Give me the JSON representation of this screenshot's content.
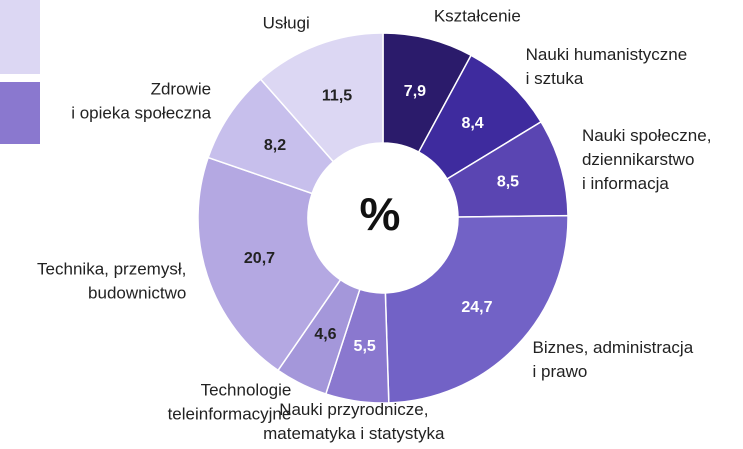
{
  "chart_data": {
    "type": "donut",
    "center_label": "%",
    "categories": [
      "Kształcenie",
      "Nauki humanistyczne\ni sztuka",
      "Nauki społeczne,\ndziennikarstwo\ni informacja",
      "Biznes, administracja\ni prawo",
      "Nauki przyrodnicze,\nmatematyka i statystyka",
      "Technologie\nteleinformacyjne",
      "Technika, przemysł,\nbudownictwo",
      "Zdrowie\ni opieka społeczna",
      "Usługi"
    ],
    "values": [
      7.9,
      8.4,
      8.5,
      24.7,
      5.5,
      4.6,
      20.7,
      8.2,
      11.5
    ],
    "value_labels": [
      "7,9",
      "8,4",
      "8,5",
      "24,7",
      "5,5",
      "4,6",
      "20,7",
      "8,2",
      "11,5"
    ],
    "colors": [
      "#2b1b6b",
      "#3e2b9e",
      "#5a45b2",
      "#7262c6",
      "#8a78cf",
      "#a497da",
      "#b4a8e2",
      "#c7bfec",
      "#dcd7f3"
    ]
  }
}
